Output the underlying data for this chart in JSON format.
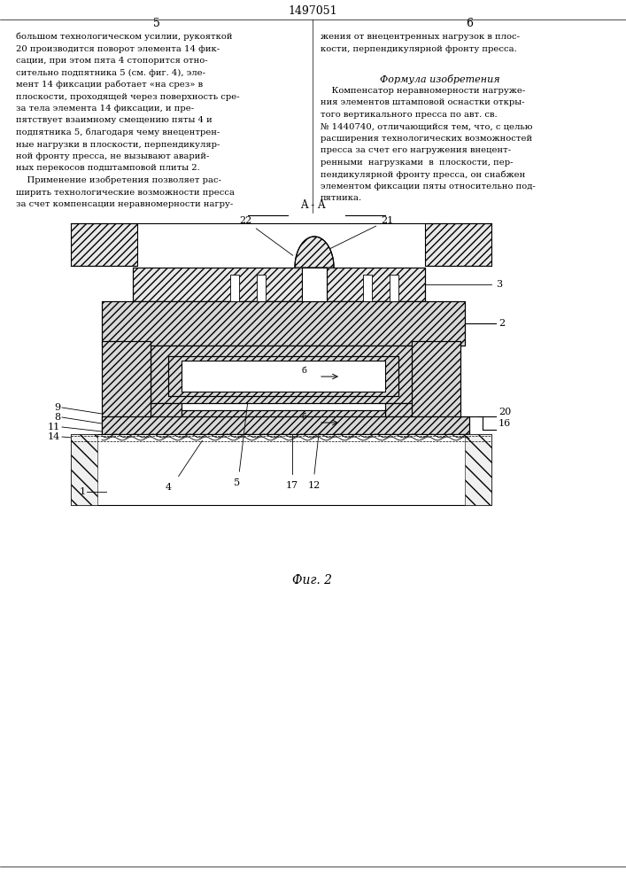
{
  "title": "1497051",
  "col_left": "5",
  "col_right": "6",
  "page_number_top": "1497051",
  "fig_label": "Фиг. 2",
  "section_label": "A - A",
  "background_color": "#ffffff",
  "line_color": "#000000",
  "hatch_color": "#000000",
  "text_left_col": [
    "большом технологическом усилии, рукояткой",
    "20 производится поворот элемента 14 фик-",
    "сации, при этом пята 4 стопорится отно-",
    "сительно подпятника 5 (см. фиг. 4), эле-",
    "мент 14 фиксации работает «на срез» в",
    "плоскости, проходящей через поверхность сре-",
    "за тела элемента 14 фиксации, и пре-",
    "пятствует взаимному смещению пяты 4 и",
    "подпятника 5, благодаря чему внецентрен-",
    "ные нагрузки в плоскости, перпендикуляр-",
    "ной фронту пресса, не вызывают аварий-",
    "ных перекосов подштамповой плиты 2.",
    "    Применение изобретения позволяет рас-",
    "ширить технологические возможности пресса",
    "за счет компенсации неравномерности нагру-"
  ],
  "text_right_col": [
    "жения от внецентренных нагрузок в плос-",
    "кости, перпендикулярной фронту пресса.",
    "",
    "    Формула изобретения",
    "",
    "    Компенсатор неравномерности нагруже-",
    "ния элементов штамповой оснастки откры-",
    "того вертикального пресса по авт. св.",
    "№ 1440740, отличающийся тем, что, с целью",
    "расширения технологических возможностей",
    "пресса за счет его нагружения внецент-",
    "ренными  нагрузками  в  плоскости, пер-",
    "пендикулярной фронту пресса, он снабжен",
    "элементом фиксации пяты относительно под-",
    "пятника."
  ]
}
